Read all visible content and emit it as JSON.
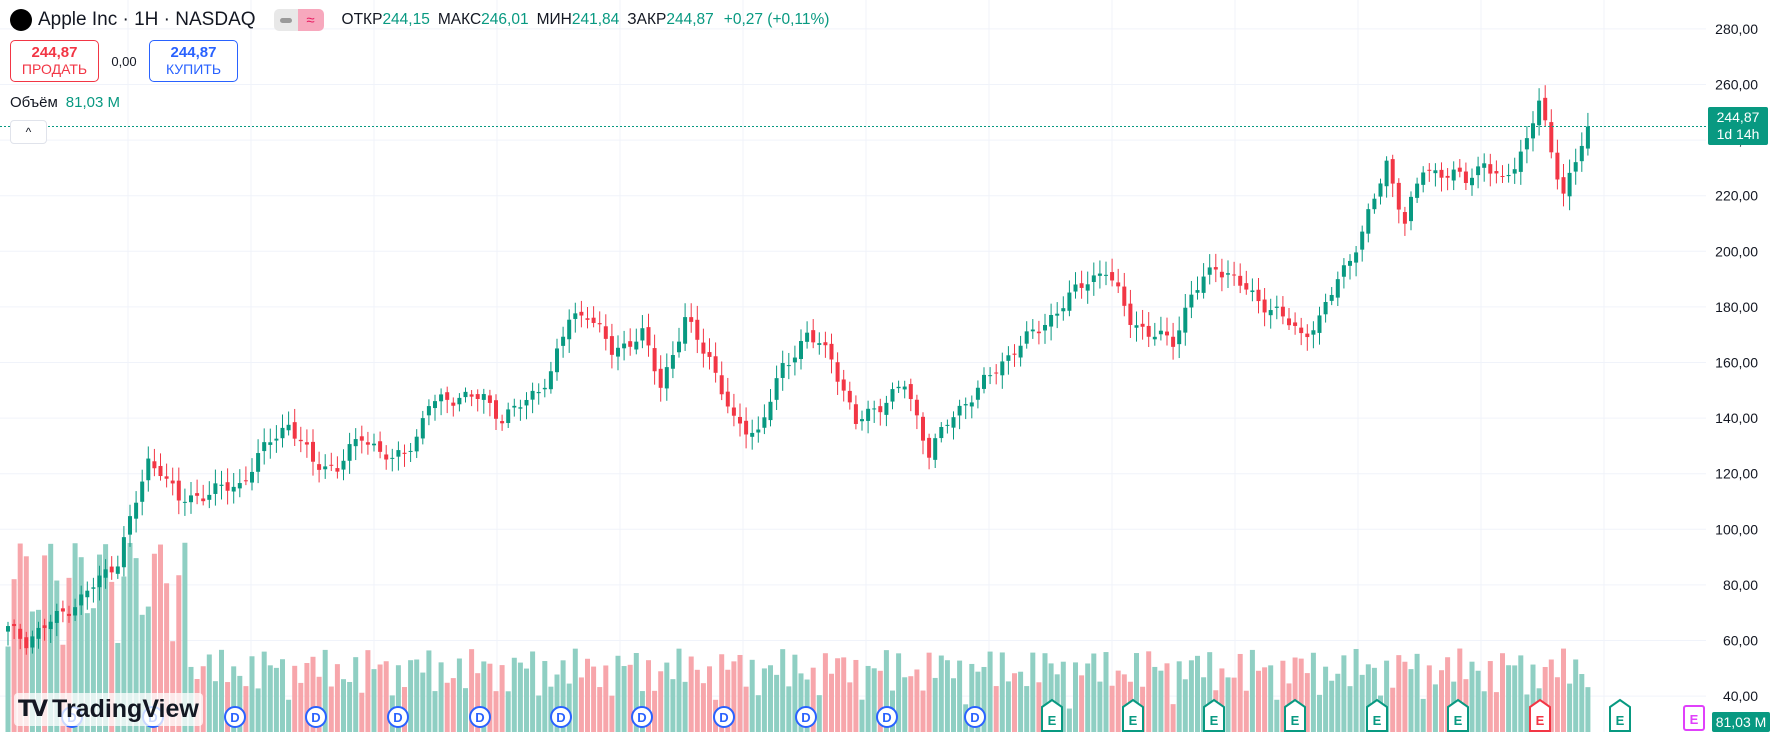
{
  "legend": {
    "symbol_title": "Apple Inc · 1H · NASDAQ",
    "open_label": "ОТКР",
    "open": "244,15",
    "high_label": "МАКС",
    "high": "246,01",
    "low_label": "МИН",
    "low": "241,84",
    "close_label": "ЗАКР",
    "close": "244,87",
    "change": "+0,27 (+0,11%)",
    "dividend_icon_glyph": "≈"
  },
  "trade": {
    "sell_price": "244,87",
    "sell_label": "ПРОДАТЬ",
    "spread": "0,00",
    "buy_price": "244,87",
    "buy_label": "КУПИТЬ"
  },
  "volume_legend": {
    "label": "Объём",
    "value": "81,03 M"
  },
  "collapse_glyph": "^",
  "price_tag": {
    "price": "244,87",
    "countdown": "1d 14h"
  },
  "volume_tag": "81,03 M",
  "branding": {
    "logo_mark": "TV",
    "logo_text": "TradingView"
  },
  "colors": {
    "up": "#089981",
    "down": "#f23645",
    "vol_up": "#8fcfc3",
    "vol_down": "#f7a6ab",
    "grid": "#f0f3fa",
    "axis_text": "#131722"
  },
  "chart_data": {
    "type": "candlestick",
    "ylim": [
      35,
      285
    ],
    "y_ticks": [
      "280,00",
      "260,00",
      "240,00",
      "220,00",
      "200,00",
      "180,00",
      "160,00",
      "140,00",
      "120,00",
      "100,00",
      "80,00",
      "60,00",
      "40,00"
    ],
    "y_tick_values": [
      280,
      260,
      240,
      220,
      200,
      180,
      160,
      140,
      120,
      100,
      80,
      60,
      40
    ],
    "current_price": 244.87,
    "anchors": [
      [
        0,
        64
      ],
      [
        3,
        60
      ],
      [
        12,
        75
      ],
      [
        18,
        89
      ],
      [
        23,
        124
      ],
      [
        25,
        122
      ],
      [
        28,
        110
      ],
      [
        34,
        114
      ],
      [
        38,
        116
      ],
      [
        43,
        132
      ],
      [
        46,
        138
      ],
      [
        50,
        124
      ],
      [
        54,
        122
      ],
      [
        58,
        134
      ],
      [
        63,
        124
      ],
      [
        67,
        133
      ],
      [
        69,
        145
      ],
      [
        74,
        148
      ],
      [
        78,
        147
      ],
      [
        81,
        140
      ],
      [
        85,
        146
      ],
      [
        89,
        156
      ],
      [
        92,
        176
      ],
      [
        95,
        178
      ],
      [
        99,
        164
      ],
      [
        104,
        170
      ],
      [
        107,
        152
      ],
      [
        111,
        175
      ],
      [
        115,
        162
      ],
      [
        119,
        138
      ],
      [
        123,
        135
      ],
      [
        127,
        158
      ],
      [
        131,
        170
      ],
      [
        135,
        162
      ],
      [
        139,
        138
      ],
      [
        143,
        145
      ],
      [
        147,
        152
      ],
      [
        151,
        128
      ],
      [
        154,
        138
      ],
      [
        157,
        146
      ],
      [
        161,
        155
      ],
      [
        165,
        165
      ],
      [
        169,
        172
      ],
      [
        173,
        181
      ],
      [
        177,
        190
      ],
      [
        180,
        193
      ],
      [
        184,
        176
      ],
      [
        187,
        170
      ],
      [
        191,
        168
      ],
      [
        194,
        184
      ],
      [
        198,
        195
      ],
      [
        201,
        190
      ],
      [
        204,
        184
      ],
      [
        208,
        178
      ],
      [
        212,
        170
      ],
      [
        215,
        175
      ],
      [
        218,
        190
      ],
      [
        222,
        206
      ],
      [
        226,
        232
      ],
      [
        229,
        210
      ],
      [
        232,
        230
      ],
      [
        235,
        228
      ],
      [
        239,
        226
      ],
      [
        242,
        232
      ],
      [
        245,
        224
      ],
      [
        249,
        240
      ],
      [
        251,
        254
      ],
      [
        253,
        235
      ],
      [
        255,
        222
      ],
      [
        257,
        232
      ],
      [
        259,
        244.87
      ]
    ],
    "volume_max": 100
  }
}
